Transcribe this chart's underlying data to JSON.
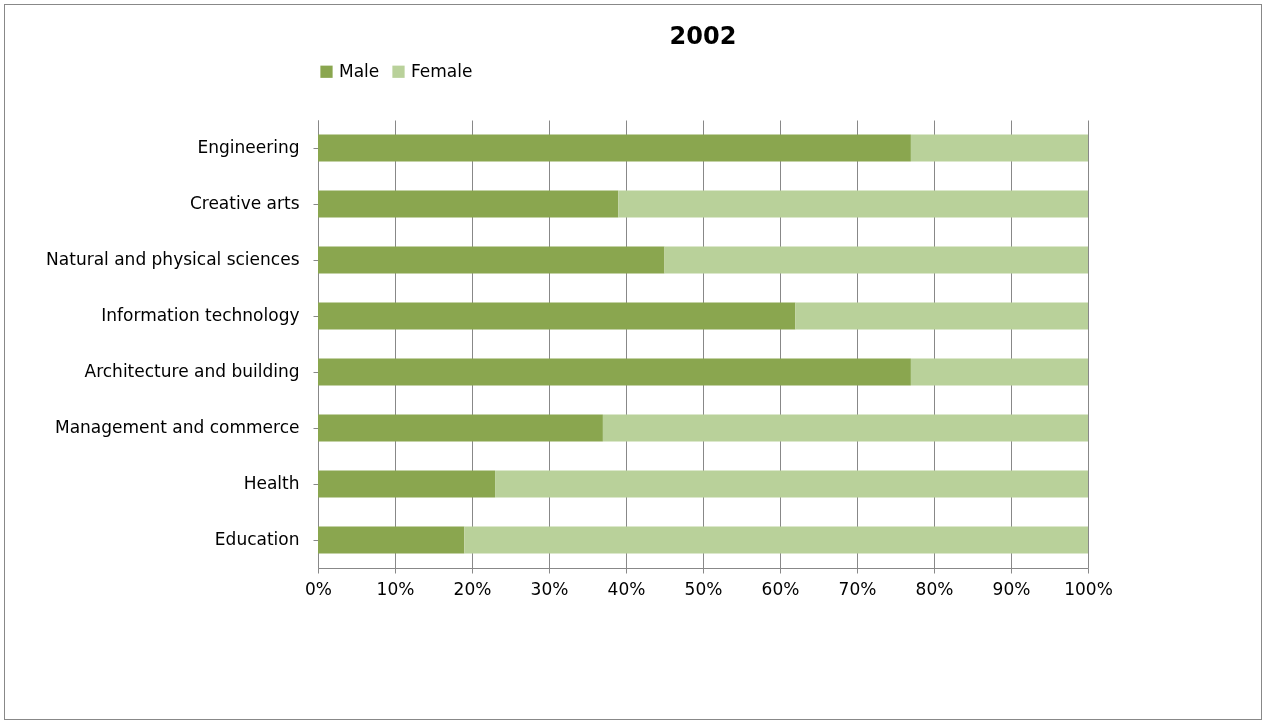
{
  "chart_data": {
    "type": "bar",
    "orientation": "horizontal",
    "stacked": true,
    "title": "2002",
    "categories": [
      "Engineering",
      "Creative arts",
      "Natural and physical sciences",
      "Information technology",
      "Architecture and building",
      "Management and commerce",
      "Health",
      "Education"
    ],
    "series": [
      {
        "name": "Male",
        "color": "#8aa64f",
        "values": [
          77,
          39,
          45,
          62,
          77,
          37,
          23,
          19
        ]
      },
      {
        "name": "Female",
        "color": "#b9d19a",
        "values": [
          23,
          61,
          55,
          38,
          23,
          63,
          77,
          81
        ]
      }
    ],
    "xlim": [
      0,
      100
    ],
    "xticks": [
      {
        "value": 0,
        "label": "0%"
      },
      {
        "value": 10,
        "label": "10%"
      },
      {
        "value": 20,
        "label": "20%"
      },
      {
        "value": 30,
        "label": "30%"
      },
      {
        "value": 40,
        "label": "40%"
      },
      {
        "value": 50,
        "label": "50%"
      },
      {
        "value": 60,
        "label": "60%"
      },
      {
        "value": 70,
        "label": "70%"
      },
      {
        "value": 80,
        "label": "80%"
      },
      {
        "value": 90,
        "label": "90%"
      },
      {
        "value": 100,
        "label": "100%"
      }
    ],
    "grid": "x",
    "legend": "top"
  }
}
